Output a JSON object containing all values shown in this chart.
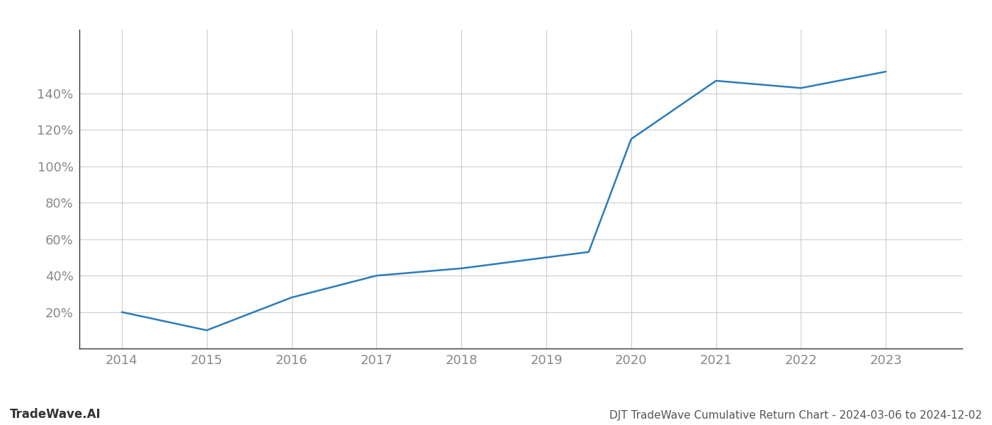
{
  "x_values": [
    2014,
    2015,
    2016,
    2017,
    2018,
    2019,
    2019.5,
    2020,
    2021,
    2022,
    2023
  ],
  "y_values": [
    20,
    10,
    28,
    40,
    44,
    50,
    53,
    115,
    147,
    143,
    152
  ],
  "line_color": "#2b7bba",
  "line_width": 1.8,
  "title": "DJT TradeWave Cumulative Return Chart - 2024-03-06 to 2024-12-02",
  "watermark": "TradeWave.AI",
  "x_ticks": [
    2014,
    2015,
    2016,
    2017,
    2018,
    2019,
    2020,
    2021,
    2022,
    2023
  ],
  "y_ticks": [
    20,
    40,
    60,
    80,
    100,
    120,
    140
  ],
  "y_min": 0,
  "y_max": 175,
  "x_min": 2013.5,
  "x_max": 2023.9,
  "background_color": "#ffffff",
  "grid_color": "#cccccc",
  "tick_label_color": "#888888",
  "title_color": "#555555",
  "watermark_color": "#333333",
  "title_fontsize": 11,
  "watermark_fontsize": 12,
  "tick_fontsize": 13
}
